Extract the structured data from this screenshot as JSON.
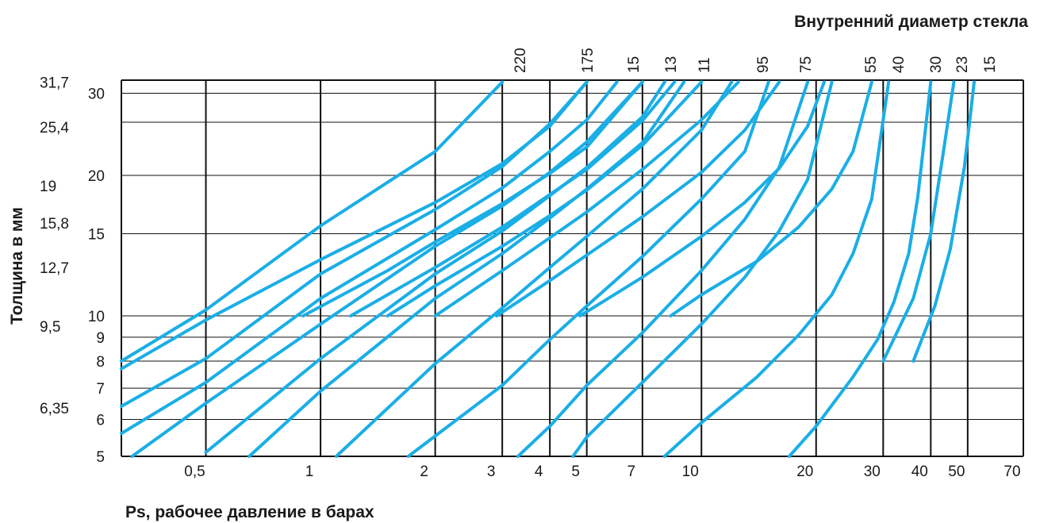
{
  "chart_data": {
    "type": "line",
    "title": "Внутренний диаметр стекла",
    "xlabel": "Ps, рабочее давление в барах",
    "ylabel": "Толщина в мм",
    "x_scale": "log",
    "xlim": [
      0.3,
      70
    ],
    "ylim": [
      5,
      32
    ],
    "x_tick_labels": [
      "0,5",
      "1",
      "2",
      "3",
      "4",
      "5",
      "7",
      "10",
      "20",
      "30",
      "40",
      "50",
      "70"
    ],
    "x_ticks": [
      0.5,
      1,
      2,
      3,
      4,
      5,
      7,
      10,
      20,
      30,
      40,
      50,
      70
    ],
    "y_ticks": [
      5,
      6,
      7,
      8,
      9,
      10,
      15,
      20,
      30
    ],
    "y_tick_labels": [
      "5",
      "6",
      "7",
      "8",
      "9",
      "10",
      "15",
      "20",
      "30"
    ],
    "y_inch_ticks": [
      6.35,
      9.5,
      12.7,
      15.8,
      19,
      25.4,
      31.7
    ],
    "y_inch_tick_labels": [
      "6,35",
      "9,5",
      "12,7",
      "15,8",
      "19",
      "25,4",
      "31,7"
    ],
    "grid": true,
    "line_color": "#1aaee6",
    "diameter_labels": [
      "220",
      "175",
      "15",
      "13",
      "11",
      "95",
      "75",
      "55",
      "40",
      "30",
      "23",
      "15"
    ],
    "series": [
      {
        "label_index": 0,
        "points": [
          [
            0.3,
            8
          ],
          [
            0.5,
            10.3
          ],
          [
            1,
            15.6
          ],
          [
            2,
            22.5
          ],
          [
            3,
            31.7
          ]
        ]
      },
      {
        "label_index": null,
        "points": [
          [
            0.3,
            6.4
          ],
          [
            0.5,
            8.1
          ],
          [
            1,
            12.3
          ],
          [
            2,
            16.9
          ],
          [
            3,
            20.9
          ],
          [
            4,
            25.8
          ],
          [
            5,
            31.7
          ]
        ]
      },
      {
        "label_index": null,
        "points": [
          [
            0.3,
            5.6
          ],
          [
            0.5,
            7.2
          ],
          [
            1,
            10.9
          ],
          [
            2,
            15.3
          ],
          [
            3,
            18.8
          ],
          [
            4,
            22.5
          ],
          [
            5,
            26.3
          ],
          [
            6,
            31.7
          ]
        ]
      },
      {
        "label_index": 1,
        "points": [
          [
            0.32,
            5
          ],
          [
            0.5,
            6.5
          ],
          [
            1,
            9.6
          ],
          [
            2,
            14.1
          ],
          [
            3,
            17.2
          ],
          [
            4,
            20.3
          ],
          [
            5,
            23.6
          ],
          [
            7,
            31.7
          ]
        ]
      },
      {
        "label_index": null,
        "points": [
          [
            0.5,
            5.1
          ],
          [
            1,
            8.1
          ],
          [
            2,
            12.3
          ],
          [
            3,
            15.2
          ],
          [
            4,
            18.1
          ],
          [
            5,
            20.8
          ],
          [
            7,
            26.7
          ],
          [
            8,
            31.7
          ]
        ]
      },
      {
        "label_index": 2,
        "points": [
          [
            0.65,
            5
          ],
          [
            1,
            6.9
          ],
          [
            2,
            10.9
          ],
          [
            3,
            13.6
          ],
          [
            4,
            16.2
          ],
          [
            5,
            18.7
          ],
          [
            7,
            23.5
          ],
          [
            9,
            31.7
          ]
        ]
      },
      {
        "label_index": 3,
        "points": [
          [
            1.1,
            5
          ],
          [
            2,
            7.9
          ],
          [
            3,
            10.4
          ],
          [
            4,
            12.7
          ],
          [
            5,
            14.8
          ],
          [
            7,
            18.7
          ],
          [
            10,
            25
          ],
          [
            12,
            31.7
          ]
        ]
      },
      {
        "label_index": 4,
        "points": [
          [
            1.7,
            5
          ],
          [
            3,
            7.1
          ],
          [
            4,
            8.9
          ],
          [
            5,
            10.5
          ],
          [
            7,
            13.4
          ],
          [
            10,
            17.8
          ],
          [
            13,
            22.5
          ],
          [
            15,
            31.7
          ]
        ]
      },
      {
        "label_index": 5,
        "points": [
          [
            3.3,
            5
          ],
          [
            4,
            5.8
          ],
          [
            5,
            7.1
          ],
          [
            7,
            9.2
          ],
          [
            10,
            12.5
          ],
          [
            13,
            16.1
          ],
          [
            16,
            20.8
          ],
          [
            19,
            31.7
          ]
        ]
      },
      {
        "label_index": 6,
        "points": [
          [
            4.6,
            5
          ],
          [
            5,
            5.5
          ],
          [
            7,
            7.2
          ],
          [
            10,
            9.6
          ],
          [
            13,
            12.1
          ],
          [
            16,
            15.2
          ],
          [
            19,
            19.6
          ],
          [
            22,
            31.7
          ]
        ]
      },
      {
        "label_index": 7,
        "points": [
          [
            8,
            5
          ],
          [
            10,
            5.9
          ],
          [
            14,
            7.4
          ],
          [
            18,
            9.1
          ],
          [
            22,
            11.1
          ],
          [
            25,
            13.6
          ],
          [
            28,
            17.8
          ],
          [
            31,
            31.7
          ]
        ]
      },
      {
        "label_index": 8,
        "points": [
          [
            17,
            5
          ],
          [
            20,
            5.8
          ],
          [
            25,
            7.4
          ],
          [
            29,
            8.9
          ],
          [
            32,
            10.7
          ],
          [
            35,
            13.6
          ],
          [
            37,
            18
          ],
          [
            40,
            31.7
          ]
        ]
      },
      {
        "label_index": 9,
        "points": [
          [
            30,
            8
          ],
          [
            36,
            10.9
          ],
          [
            40,
            15
          ],
          [
            43,
            22
          ],
          [
            46,
            31.7
          ]
        ]
      },
      {
        "label_index": 10,
        "points": [
          [
            36,
            8
          ],
          [
            41,
            10.5
          ],
          [
            45,
            13.9
          ],
          [
            49,
            20.8
          ],
          [
            52,
            31.7
          ]
        ]
      },
      {
        "label_index": 11,
        "points": [
          [
            0.3,
            7.7
          ],
          [
            0.5,
            9.8
          ],
          [
            1,
            13.2
          ],
          [
            2,
            17.5
          ],
          [
            3,
            21.2
          ],
          [
            4,
            25.5
          ],
          [
            5,
            31.7
          ]
        ]
      },
      {
        "label_index": null,
        "points": [
          [
            0.9,
            10
          ],
          [
            1.5,
            12.5
          ],
          [
            2,
            14.4
          ],
          [
            3,
            17.4
          ],
          [
            4,
            20.2
          ],
          [
            5,
            23
          ],
          [
            7,
            31.7
          ]
        ]
      },
      {
        "label_index": null,
        "points": [
          [
            1.2,
            10
          ],
          [
            2,
            12.7
          ],
          [
            3,
            15.5
          ],
          [
            4,
            18.2
          ],
          [
            5,
            20.6
          ],
          [
            7,
            26.2
          ],
          [
            8.5,
            31.7
          ]
        ]
      },
      {
        "label_index": null,
        "points": [
          [
            1.5,
            10
          ],
          [
            2,
            11.6
          ],
          [
            3,
            14.1
          ],
          [
            4,
            16.4
          ],
          [
            5,
            18.6
          ],
          [
            7,
            23.2
          ],
          [
            10,
            31.7
          ]
        ]
      },
      {
        "label_index": null,
        "points": [
          [
            2,
            10
          ],
          [
            3,
            12.5
          ],
          [
            4,
            14.7
          ],
          [
            5,
            16.7
          ],
          [
            7,
            20.6
          ],
          [
            10,
            26.3
          ],
          [
            12.5,
            31.7
          ]
        ]
      },
      {
        "label_index": null,
        "points": [
          [
            2.9,
            10
          ],
          [
            4,
            11.9
          ],
          [
            5,
            13.5
          ],
          [
            7,
            16.3
          ],
          [
            10,
            20.3
          ],
          [
            13,
            25
          ],
          [
            16,
            31.7
          ]
        ]
      },
      {
        "label_index": null,
        "points": [
          [
            4.8,
            10
          ],
          [
            7,
            12.1
          ],
          [
            10,
            14.8
          ],
          [
            13,
            17.5
          ],
          [
            16,
            20.7
          ],
          [
            19,
            25.5
          ],
          [
            21,
            31.7
          ]
        ]
      },
      {
        "label_index": null,
        "points": [
          [
            8.3,
            10
          ],
          [
            10,
            11.1
          ],
          [
            14,
            13.1
          ],
          [
            18,
            15.5
          ],
          [
            22,
            18.7
          ],
          [
            25,
            22.5
          ],
          [
            28,
            31.7
          ]
        ]
      }
    ]
  }
}
